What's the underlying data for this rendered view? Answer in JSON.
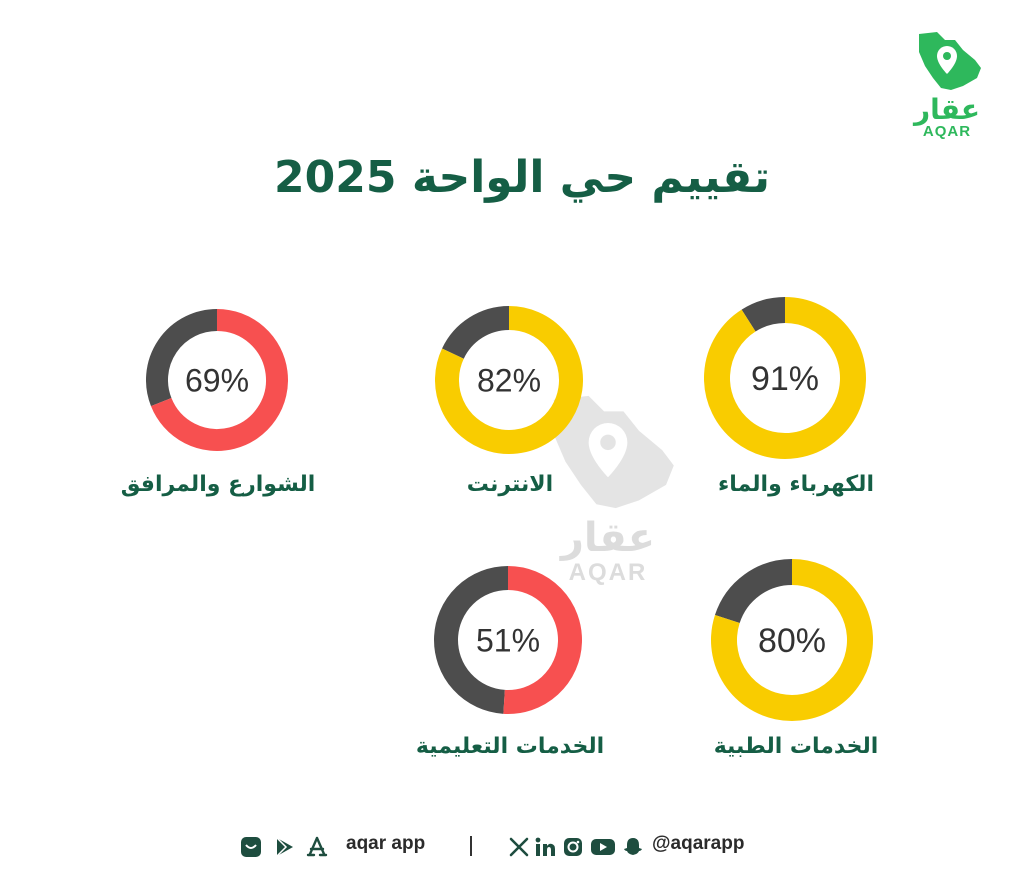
{
  "title": "تقييم حي الواحة 2025",
  "brand": {
    "name_ar": "عقار",
    "name_en": "AQAR",
    "color": "#2eb85c"
  },
  "watermark": {
    "name_ar": "عقار",
    "name_en": "AQAR"
  },
  "colors": {
    "remaining": "#4d4d4d",
    "yellow": "#f9cc00",
    "red": "#f75050",
    "title": "#155e45"
  },
  "chart_data": {
    "type": "donut",
    "items": [
      {
        "label": "الكهرباء والماء",
        "value": 91,
        "display": "91%",
        "color": "#f9cc00"
      },
      {
        "label": "الانترنت",
        "value": 82,
        "display": "82%",
        "color": "#f9cc00"
      },
      {
        "label": "الشوارع والمرافق",
        "value": 69,
        "display": "69%",
        "color": "#f75050"
      },
      {
        "label": "الخدمات الطبية",
        "value": 80,
        "display": "80%",
        "color": "#f9cc00"
      },
      {
        "label": "الخدمات التعليمية",
        "value": 51,
        "display": "51%",
        "color": "#f75050"
      }
    ]
  },
  "footer": {
    "app_label": "aqar app",
    "handle": "@aqarapp",
    "app_icons": [
      "store-icon",
      "google-play-icon",
      "app-store-icon"
    ],
    "social_icons": [
      "x-icon",
      "linkedin-icon",
      "instagram-icon",
      "youtube-icon",
      "snapchat-icon"
    ]
  }
}
